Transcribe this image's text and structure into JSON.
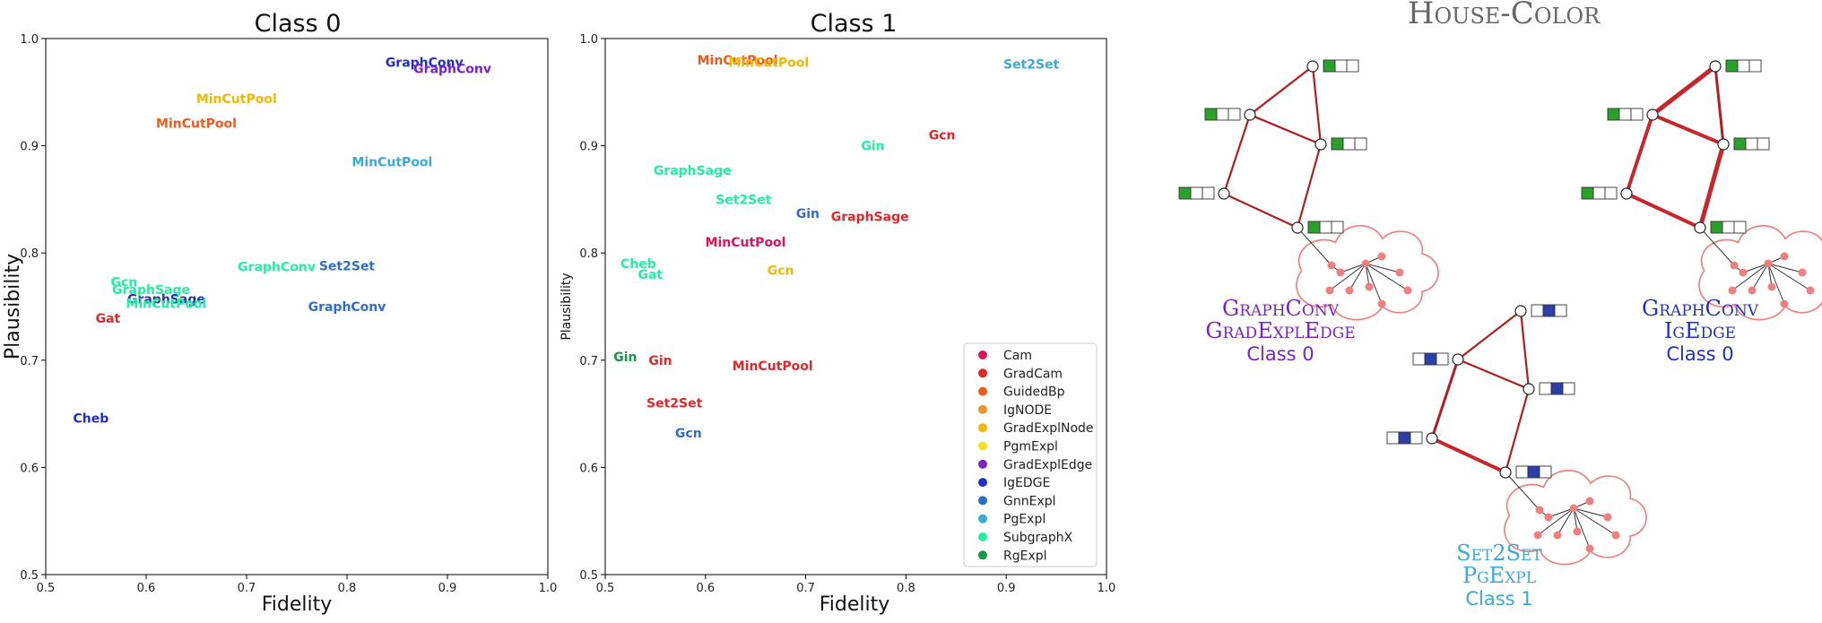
{
  "chart_data": [
    {
      "type": "scatter",
      "title": "Class 0",
      "xlabel": "Fidelity",
      "ylabel": "Plausibility",
      "xlim": [
        0.5,
        1.0
      ],
      "ylim": [
        0.5,
        1.0
      ],
      "xticks": [
        "0.5",
        "0.6",
        "0.7",
        "0.8",
        "0.9",
        "1.0"
      ],
      "yticks": [
        "0.5",
        "0.6",
        "0.7",
        "0.8",
        "0.9",
        "1.0"
      ],
      "grid": false,
      "points": [
        {
          "label": "GraphConv",
          "x": 0.877,
          "y": 0.978,
          "color": "#1f2fc8"
        },
        {
          "label": "GraphConv",
          "x": 0.905,
          "y": 0.972,
          "color": "#7b22c8"
        },
        {
          "label": "MinCutPool",
          "x": 0.69,
          "y": 0.944,
          "color": "#f5b800"
        },
        {
          "label": "MinCutPool",
          "x": 0.65,
          "y": 0.921,
          "color": "#f05a1e"
        },
        {
          "label": "MinCutPool",
          "x": 0.845,
          "y": 0.885,
          "color": "#3aaad8"
        },
        {
          "label": "Set2Set",
          "x": 0.8,
          "y": 0.788,
          "color": "#2f6ec8"
        },
        {
          "label": "GraphConv",
          "x": 0.73,
          "y": 0.787,
          "color": "#20f0a0"
        },
        {
          "label": "GraphConv",
          "x": 0.8,
          "y": 0.75,
          "color": "#2f6ec8"
        },
        {
          "label": "Gcn",
          "x": 0.578,
          "y": 0.773,
          "color": "#20f0a0"
        },
        {
          "label": "GraphSage",
          "x": 0.605,
          "y": 0.766,
          "color": "#20f0a0"
        },
        {
          "label": "GraphSage",
          "x": 0.62,
          "y": 0.757,
          "color": "#2233aa"
        },
        {
          "label": "MinCutPool",
          "x": 0.62,
          "y": 0.753,
          "color": "#20f0a0"
        },
        {
          "label": "Gat",
          "x": 0.562,
          "y": 0.739,
          "color": "#e0282c"
        },
        {
          "label": "Cheb",
          "x": 0.545,
          "y": 0.646,
          "color": "#1f2fc8"
        }
      ]
    },
    {
      "type": "scatter",
      "title": "Class 1",
      "xlabel": "Fidelity",
      "ylabel": "Plausibility",
      "xlim": [
        0.5,
        1.0
      ],
      "ylim": [
        0.5,
        1.0
      ],
      "xticks": [
        "0.5",
        "0.6",
        "0.7",
        "0.8",
        "0.9",
        "1.0"
      ],
      "yticks": [
        "0.5",
        "0.6",
        "0.7",
        "0.8",
        "0.9",
        "1.0"
      ],
      "grid": false,
      "legend_position": "lower-right",
      "points": [
        {
          "label": "MinCutPool",
          "x": 0.632,
          "y": 0.98,
          "color": "#f05a1e"
        },
        {
          "label": "MinCutPool",
          "x": 0.663,
          "y": 0.978,
          "color": "#f5b800"
        },
        {
          "label": "Set2Set",
          "x": 0.925,
          "y": 0.976,
          "color": "#3aaad8"
        },
        {
          "label": "Gcn",
          "x": 0.836,
          "y": 0.91,
          "color": "#e0282c"
        },
        {
          "label": "Gin",
          "x": 0.767,
          "y": 0.9,
          "color": "#20f0a0"
        },
        {
          "label": "GraphSage",
          "x": 0.587,
          "y": 0.877,
          "color": "#20f0a0"
        },
        {
          "label": "Set2Set",
          "x": 0.638,
          "y": 0.85,
          "color": "#20f0a0"
        },
        {
          "label": "Gin",
          "x": 0.702,
          "y": 0.837,
          "color": "#2f6ec8"
        },
        {
          "label": "GraphSage",
          "x": 0.764,
          "y": 0.834,
          "color": "#e0282c"
        },
        {
          "label": "MinCutPool",
          "x": 0.64,
          "y": 0.81,
          "color": "#e0135a"
        },
        {
          "label": "Cheb",
          "x": 0.533,
          "y": 0.79,
          "color": "#20f0a0"
        },
        {
          "label": "Gcn",
          "x": 0.675,
          "y": 0.784,
          "color": "#f5b800"
        },
        {
          "label": "Gat",
          "x": 0.545,
          "y": 0.78,
          "color": "#20f0a0"
        },
        {
          "label": "Gin",
          "x": 0.52,
          "y": 0.703,
          "color": "#119944"
        },
        {
          "label": "Gin",
          "x": 0.555,
          "y": 0.7,
          "color": "#e0282c"
        },
        {
          "label": "MinCutPool",
          "x": 0.667,
          "y": 0.695,
          "color": "#e0282c"
        },
        {
          "label": "Set2Set",
          "x": 0.569,
          "y": 0.66,
          "color": "#e0282c"
        },
        {
          "label": "Gcn",
          "x": 0.583,
          "y": 0.632,
          "color": "#2f6ec8"
        }
      ]
    }
  ],
  "legend": [
    {
      "name": "Cam",
      "color": "#e0135a"
    },
    {
      "name": "GradCam",
      "color": "#e0282c"
    },
    {
      "name": "GuidedBp",
      "color": "#f05a1e"
    },
    {
      "name": "IgNODE",
      "color": "#f0902a"
    },
    {
      "name": "GradExplNode",
      "color": "#f5b800"
    },
    {
      "name": "PgmExpl",
      "color": "#f7e020"
    },
    {
      "name": "GradExplEdge",
      "color": "#7b22c8"
    },
    {
      "name": "IgEDGE",
      "color": "#1f2fc8"
    },
    {
      "name": "GnnExpl",
      "color": "#2f6ec8"
    },
    {
      "name": "PgExpl",
      "color": "#3aaad8"
    },
    {
      "name": "SubgraphX",
      "color": "#20f0a0"
    },
    {
      "name": "RgExpl",
      "color": "#119944"
    }
  ],
  "examples": {
    "title": "House-Color",
    "panels": [
      {
        "architecture": "GraphConv",
        "explainer": "GradExplEdge",
        "class_label": "Class 0",
        "color": "#7b22c8",
        "feature": "green"
      },
      {
        "architecture": "GraphConv",
        "explainer": "IgEdge",
        "class_label": "Class 0",
        "color": "#1f2fc8",
        "feature": "green"
      },
      {
        "architecture": "Set2Set",
        "explainer": "PgExpl",
        "class_label": "Class 1",
        "color": "#3aaad8",
        "feature": "blue"
      }
    ],
    "feature_colors": {
      "green": "#2ca02c",
      "blue": "#2c3fa8",
      "edge": "#b01e24",
      "cloud": "#f08080"
    }
  }
}
